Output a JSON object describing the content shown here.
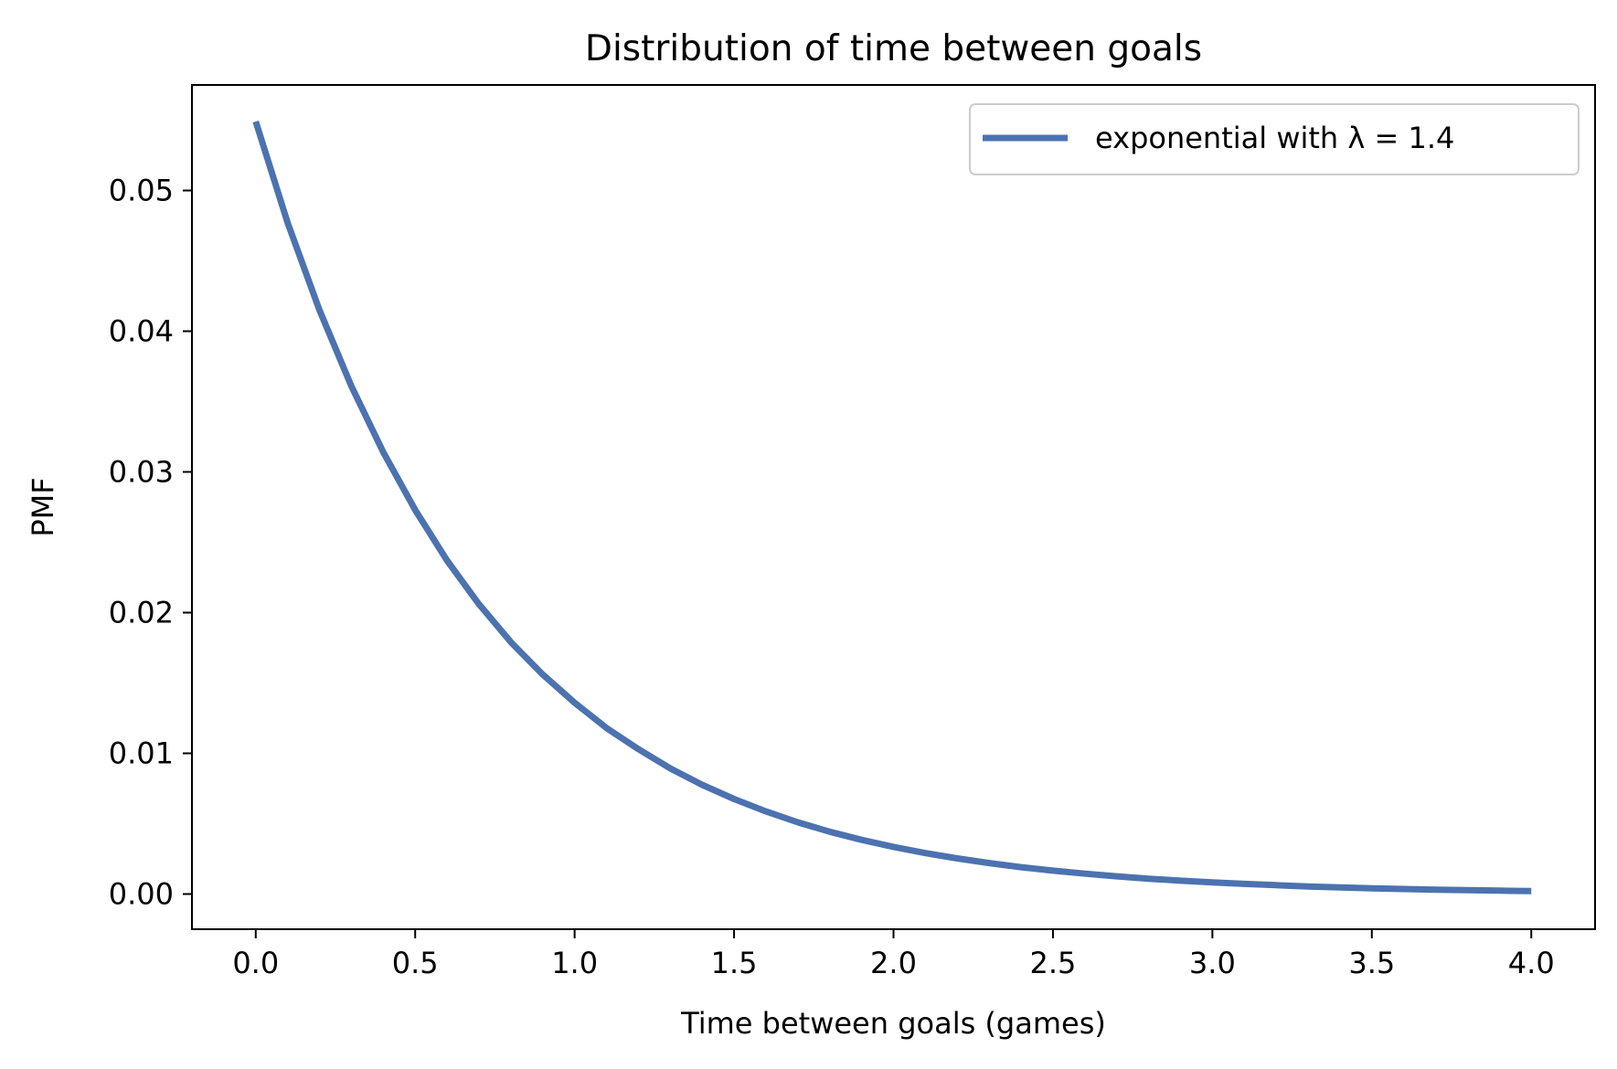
{
  "chart_data": {
    "type": "line",
    "title": "Distribution of time between goals",
    "xlabel": "Time between goals (games)",
    "ylabel": "PMF",
    "xlim": [
      -0.2,
      4.2
    ],
    "ylim": [
      -0.0025,
      0.0575
    ],
    "xticks": [
      0.0,
      0.5,
      1.0,
      1.5,
      2.0,
      2.5,
      3.0,
      3.5,
      4.0
    ],
    "xtick_labels": [
      "0.0",
      "0.5",
      "1.0",
      "1.5",
      "2.0",
      "2.5",
      "3.0",
      "3.5",
      "4.0"
    ],
    "yticks": [
      0.0,
      0.01,
      0.02,
      0.03,
      0.04,
      0.05
    ],
    "ytick_labels": [
      "0.00",
      "0.01",
      "0.02",
      "0.03",
      "0.04",
      "0.05"
    ],
    "grid": false,
    "legend_position": "top-right",
    "series": [
      {
        "name": "exponential with λ = 1.4",
        "color": "#4c72b0",
        "x": [
          0.0,
          0.1,
          0.2,
          0.3,
          0.4,
          0.5,
          0.6,
          0.7,
          0.8,
          0.9,
          1.0,
          1.1,
          1.2,
          1.3,
          1.4,
          1.5,
          1.6,
          1.7,
          1.8,
          1.9,
          2.0,
          2.1,
          2.2,
          2.3,
          2.4,
          2.5,
          2.6,
          2.7,
          2.8,
          2.9,
          3.0,
          3.1,
          3.2,
          3.3,
          3.4,
          3.5,
          3.6,
          3.7,
          3.8,
          3.9,
          4.0
        ],
        "y": [
          0.0549,
          0.0477,
          0.0415,
          0.0361,
          0.0314,
          0.0273,
          0.0237,
          0.0206,
          0.0179,
          0.0156,
          0.0136,
          0.0118,
          0.0103,
          0.00893,
          0.00776,
          0.00675,
          0.00587,
          0.0051,
          0.00443,
          0.00385,
          0.00335,
          0.00291,
          0.00253,
          0.0022,
          0.00191,
          0.00166,
          0.00145,
          0.00126,
          0.00109,
          0.00095,
          0.00083,
          0.00072,
          0.00063,
          0.00054,
          0.00047,
          0.00041,
          0.00036,
          0.00031,
          0.00027,
          0.00024,
          0.00021
        ]
      }
    ]
  }
}
